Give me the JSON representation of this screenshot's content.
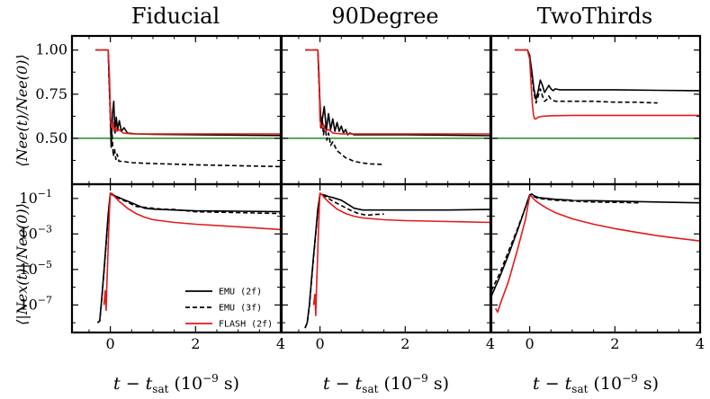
{
  "chart_data": {
    "type": "line",
    "columns": [
      "Fiducial",
      "90Degree",
      "TwoThirds"
    ],
    "x_label": "t − t",
    "x_label_sub": "sat",
    "x_label_units": " (10",
    "x_label_exp": "−9",
    "x_label_tail": " s)",
    "x_range": [
      -0.9,
      4.0
    ],
    "x_ticks": [
      "0",
      "2",
      "4"
    ],
    "x_tick_values": [
      0,
      2,
      4
    ],
    "rows": [
      {
        "ylabel": "⟨Nee(t)/Nee(0)⟩",
        "scale": "linear",
        "y_range": [
          0.24,
          1.08
        ],
        "y_ticks": [
          "1.00",
          "0.75",
          "0.50"
        ],
        "y_tick_values": [
          1.0,
          0.75,
          0.5
        ],
        "reference_line": {
          "y": 0.5,
          "color": "#228b22"
        }
      },
      {
        "ylabel": "⟨|Nex(t)|/Nee(0)⟩",
        "scale": "log",
        "y_range_exp": [
          -8.55,
          -0.2
        ],
        "y_ticks": [
          "10",
          "10",
          "10",
          "10"
        ],
        "y_tick_exps": [
          "−1",
          "−3",
          "−5",
          "−7"
        ],
        "y_tick_values": [
          -1,
          -3,
          -5,
          -7
        ]
      }
    ],
    "legend": {
      "position": "lower-right of bottom-left panel",
      "entries": [
        {
          "label": "EMU (2f)",
          "color": "#000000",
          "dash": "solid"
        },
        {
          "label": "EMU (3f)",
          "color": "#000000",
          "dash": "dashed"
        },
        {
          "label": "FLASH (2f)",
          "color": "#e41a1c",
          "dash": "solid"
        }
      ]
    },
    "panels": [
      {
        "row": 0,
        "col": 0,
        "series": [
          {
            "name": "EMU (2f)",
            "x": [
              -0.35,
              -0.05,
              0.0,
              0.02,
              0.05,
              0.08,
              0.11,
              0.14,
              0.17,
              0.21,
              0.26,
              0.32,
              0.4,
              0.6,
              1.0,
              2.0,
              3.0,
              4.0
            ],
            "y": [
              1.0,
              1.0,
              0.66,
              0.45,
              0.64,
              0.71,
              0.53,
              0.62,
              0.55,
              0.6,
              0.54,
              0.56,
              0.53,
              0.525,
              0.523,
              0.52,
              0.518,
              0.516
            ]
          },
          {
            "name": "EMU (3f)",
            "x": [
              -0.35,
              -0.05,
              0.0,
              0.02,
              0.04,
              0.07,
              0.1,
              0.13,
              0.16,
              0.2,
              0.3,
              0.4,
              0.5,
              0.7,
              1.0,
              2.0,
              3.0,
              4.0
            ],
            "y": [
              1.0,
              1.0,
              0.6,
              0.46,
              0.53,
              0.4,
              0.44,
              0.38,
              0.41,
              0.37,
              0.37,
              0.365,
              0.362,
              0.36,
              0.357,
              0.35,
              0.345,
              0.34
            ]
          },
          {
            "name": "FLASH (2f)",
            "x": [
              -0.35,
              -0.05,
              -0.02,
              0.0,
              0.03,
              0.06,
              0.09,
              0.12,
              0.16,
              0.2,
              0.3,
              0.5,
              1.0,
              2.0,
              3.0,
              4.0
            ],
            "y": [
              1.0,
              1.0,
              0.85,
              0.62,
              0.56,
              0.59,
              0.54,
              0.56,
              0.54,
              0.55,
              0.53,
              0.525,
              0.525,
              0.525,
              0.525,
              0.525
            ]
          }
        ]
      },
      {
        "row": 0,
        "col": 1,
        "series": [
          {
            "name": "EMU (2f)",
            "x": [
              -0.35,
              -0.05,
              0.0,
              0.03,
              0.06,
              0.1,
              0.15,
              0.2,
              0.25,
              0.3,
              0.35,
              0.4,
              0.45,
              0.5,
              0.55,
              0.6,
              0.65,
              0.7,
              0.8,
              1.0,
              2.0,
              3.0,
              4.0
            ],
            "y": [
              1.0,
              1.0,
              0.7,
              0.56,
              0.62,
              0.68,
              0.55,
              0.64,
              0.55,
              0.61,
              0.54,
              0.59,
              0.54,
              0.57,
              0.53,
              0.55,
              0.52,
              0.53,
              0.52,
              0.52,
              0.52,
              0.518,
              0.515
            ]
          },
          {
            "name": "EMU (3f)",
            "x": [
              -0.35,
              -0.05,
              0.0,
              0.02,
              0.05,
              0.08,
              0.12,
              0.16,
              0.2,
              0.25,
              0.3,
              0.4,
              0.5,
              0.6,
              0.7,
              0.8,
              1.0,
              1.2,
              1.5
            ],
            "y": [
              1.0,
              1.0,
              0.66,
              0.55,
              0.62,
              0.52,
              0.57,
              0.49,
              0.53,
              0.46,
              0.48,
              0.43,
              0.41,
              0.39,
              0.38,
              0.37,
              0.36,
              0.355,
              0.352
            ]
          },
          {
            "name": "FLASH (2f)",
            "x": [
              -0.35,
              -0.05,
              -0.02,
              0.0,
              0.04,
              0.08,
              0.12,
              0.2,
              0.3,
              0.5,
              1.0,
              2.0,
              3.0,
              4.0
            ],
            "y": [
              1.0,
              1.0,
              0.85,
              0.6,
              0.56,
              0.58,
              0.54,
              0.55,
              0.53,
              0.525,
              0.525,
              0.525,
              0.525,
              0.525
            ]
          }
        ]
      },
      {
        "row": 0,
        "col": 2,
        "series": [
          {
            "name": "EMU (2f)",
            "x": [
              -0.35,
              -0.05,
              0.0,
              0.05,
              0.1,
              0.15,
              0.2,
              0.25,
              0.3,
              0.35,
              0.4,
              0.45,
              0.5,
              0.55,
              0.6,
              0.7,
              0.8,
              1.0,
              2.0,
              3.0,
              4.0
            ],
            "y": [
              1.0,
              1.0,
              0.97,
              0.88,
              0.78,
              0.72,
              0.77,
              0.83,
              0.8,
              0.76,
              0.78,
              0.8,
              0.78,
              0.77,
              0.78,
              0.775,
              0.775,
              0.775,
              0.775,
              0.772,
              0.77
            ]
          },
          {
            "name": "EMU (3f)",
            "x": [
              -0.35,
              -0.05,
              0.0,
              0.05,
              0.1,
              0.15,
              0.2,
              0.25,
              0.3,
              0.35,
              0.4,
              0.45,
              0.5,
              0.6,
              0.8,
              1.0,
              1.5,
              2.0,
              2.5,
              3.0
            ],
            "y": [
              1.0,
              1.0,
              0.96,
              0.86,
              0.76,
              0.7,
              0.74,
              0.78,
              0.74,
              0.71,
              0.72,
              0.74,
              0.72,
              0.71,
              0.71,
              0.71,
              0.71,
              0.705,
              0.705,
              0.7
            ]
          },
          {
            "name": "FLASH (2f)",
            "x": [
              -0.35,
              -0.05,
              0.0,
              0.03,
              0.06,
              0.09,
              0.12,
              0.15,
              0.2,
              0.3,
              0.5,
              1.0,
              2.0,
              3.0,
              4.0
            ],
            "y": [
              1.0,
              1.0,
              0.95,
              0.82,
              0.7,
              0.63,
              0.61,
              0.61,
              0.62,
              0.625,
              0.628,
              0.63,
              0.63,
              0.63,
              0.63
            ]
          }
        ]
      },
      {
        "row": 1,
        "col": 0,
        "series": [
          {
            "name": "EMU (2f)",
            "x": [
              -0.3,
              -0.25,
              -0.2,
              -0.15,
              -0.1,
              -0.05,
              0.0,
              0.05,
              0.1,
              0.2,
              0.3,
              0.4,
              0.6,
              0.8,
              1.0,
              1.5,
              2.0,
              3.0,
              4.0
            ],
            "y": [
              -8.0,
              -7.9,
              -6.6,
              -5.1,
              -3.5,
              -1.9,
              -0.7,
              -0.75,
              -0.85,
              -0.95,
              -1.05,
              -1.15,
              -1.35,
              -1.55,
              -1.6,
              -1.65,
              -1.7,
              -1.72,
              -1.75
            ]
          },
          {
            "name": "EMU (3f)",
            "x": [
              -0.3,
              -0.25,
              -0.2,
              -0.15,
              -0.1,
              -0.05,
              0.0,
              0.05,
              0.1,
              0.2,
              0.4,
              0.6,
              0.8,
              1.0,
              1.2,
              1.5,
              2.0,
              3.0,
              4.0
            ],
            "y": [
              -8.0,
              -7.9,
              -6.7,
              -5.2,
              -3.6,
              -2.0,
              -0.75,
              -0.8,
              -0.9,
              -1.0,
              -1.2,
              -1.45,
              -1.5,
              -1.55,
              -1.6,
              -1.62,
              -1.75,
              -1.8,
              -1.85
            ]
          },
          {
            "name": "FLASH (2f)",
            "x": [
              -0.15,
              -0.12,
              -0.1,
              -0.08,
              -0.06,
              -0.04,
              -0.02,
              0.0,
              0.05,
              0.1,
              0.2,
              0.4,
              0.6,
              0.8,
              1.0,
              1.5,
              2.0,
              3.0,
              4.0
            ],
            "y": [
              -7.0,
              -6.2,
              -7.3,
              -5.8,
              -4.3,
              -3.0,
              -1.6,
              -0.7,
              -0.75,
              -0.9,
              -1.15,
              -1.55,
              -1.85,
              -2.05,
              -2.2,
              -2.35,
              -2.45,
              -2.6,
              -2.75
            ]
          }
        ]
      },
      {
        "row": 1,
        "col": 1,
        "series": [
          {
            "name": "EMU (2f)",
            "x": [
              -0.35,
              -0.3,
              -0.25,
              -0.2,
              -0.15,
              -0.1,
              -0.05,
              0.0,
              0.1,
              0.2,
              0.3,
              0.5,
              0.6,
              0.7,
              0.8,
              1.0,
              1.5,
              2.0,
              3.0,
              4.0
            ],
            "y": [
              -8.3,
              -8.0,
              -7.0,
              -5.6,
              -4.2,
              -2.9,
              -1.6,
              -0.75,
              -0.8,
              -0.9,
              -0.95,
              -1.1,
              -1.25,
              -1.4,
              -1.55,
              -1.65,
              -1.65,
              -1.65,
              -1.65,
              -1.62
            ]
          },
          {
            "name": "EMU (3f)",
            "x": [
              -0.35,
              -0.3,
              -0.25,
              -0.2,
              -0.15,
              -0.1,
              -0.05,
              0.0,
              0.1,
              0.2,
              0.3,
              0.5,
              0.7,
              0.9,
              1.1,
              1.3,
              1.5
            ],
            "y": [
              -8.3,
              -8.0,
              -7.1,
              -5.7,
              -4.3,
              -3.0,
              -1.7,
              -0.8,
              -0.85,
              -1.0,
              -1.15,
              -1.4,
              -1.65,
              -1.85,
              -1.95,
              -1.9,
              -1.88
            ]
          },
          {
            "name": "FLASH (2f)",
            "x": [
              -0.15,
              -0.12,
              -0.1,
              -0.08,
              -0.06,
              -0.04,
              -0.02,
              0.0,
              0.05,
              0.1,
              0.2,
              0.4,
              0.6,
              0.8,
              1.0,
              1.5,
              2.0,
              3.0,
              4.0
            ],
            "y": [
              -7.0,
              -6.4,
              -7.6,
              -5.9,
              -4.5,
              -3.1,
              -1.7,
              -0.7,
              -0.8,
              -0.95,
              -1.2,
              -1.6,
              -1.85,
              -2.0,
              -2.1,
              -2.2,
              -2.25,
              -2.3,
              -2.35
            ]
          }
        ]
      },
      {
        "row": 1,
        "col": 2,
        "series": [
          {
            "name": "EMU (2f)",
            "x": [
              -0.9,
              -0.7,
              -0.5,
              -0.3,
              -0.1,
              0.0,
              0.05,
              0.1,
              0.2,
              0.4,
              0.6,
              1.0,
              2.0,
              3.0,
              4.0
            ],
            "y": [
              -6.5,
              -5.4,
              -4.2,
              -2.9,
              -1.5,
              -0.8,
              -0.75,
              -0.85,
              -0.95,
              -1.0,
              -1.05,
              -1.1,
              -1.15,
              -1.2,
              -1.25
            ]
          },
          {
            "name": "EMU (3f)",
            "x": [
              -0.9,
              -0.7,
              -0.5,
              -0.3,
              -0.1,
              0.0,
              0.05,
              0.1,
              0.2,
              0.4,
              0.6,
              1.0,
              1.5,
              2.0,
              2.6
            ],
            "y": [
              -6.2,
              -5.2,
              -4.0,
              -2.8,
              -1.5,
              -0.8,
              -0.8,
              -0.9,
              -1.0,
              -1.05,
              -1.1,
              -1.15,
              -1.2,
              -1.22,
              -1.25
            ]
          },
          {
            "name": "FLASH (2f)",
            "x": [
              -0.8,
              -0.75,
              -0.7,
              -0.5,
              -0.3,
              -0.1,
              0.0,
              0.05,
              0.1,
              0.2,
              0.4,
              0.6,
              1.0,
              1.5,
              2.0,
              2.5,
              3.0,
              3.5,
              4.0
            ],
            "y": [
              -7.2,
              -7.4,
              -7.0,
              -5.7,
              -4.0,
              -2.2,
              -0.85,
              -0.9,
              -1.05,
              -1.25,
              -1.55,
              -1.8,
              -2.15,
              -2.45,
              -2.7,
              -2.9,
              -3.1,
              -3.25,
              -3.4
            ]
          }
        ]
      }
    ]
  }
}
